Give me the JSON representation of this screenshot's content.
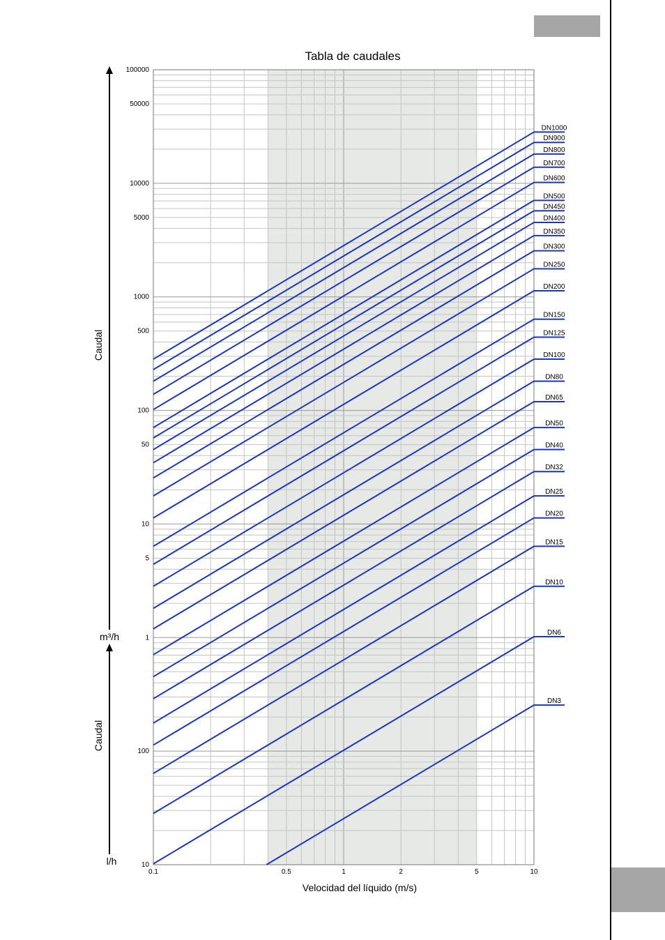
{
  "chart_data": {
    "type": "line",
    "title": "Tabla de caudales",
    "xlabel": "Velocidad del líquido (m/s)",
    "ylabel_upper": "Caudal",
    "ylabel_lower": "Caudal",
    "unit_upper": "m³/h",
    "unit_lower": "l/h",
    "x_scale": "log",
    "y_scale": "log",
    "xlim": [
      0.1,
      10
    ],
    "ylim_l_per_h": [
      10,
      100000000
    ],
    "x_tick_labels": [
      "0.1",
      "0.5",
      "1",
      "2",
      "5",
      "10"
    ],
    "y_ticks_upper_m3h": [
      "100000",
      "50000",
      "10000",
      "5000",
      "1000",
      "500",
      "100",
      "50",
      "10",
      "5",
      "1"
    ],
    "y_ticks_lower_lh": [
      "100",
      "10"
    ],
    "shaded_band_x": [
      0.4,
      5
    ],
    "grid": true,
    "line_color": "#1a35c8",
    "series": [
      {
        "name": "DN1000",
        "dn_mm": 1000
      },
      {
        "name": "DN900",
        "dn_mm": 900
      },
      {
        "name": "DN800",
        "dn_mm": 800
      },
      {
        "name": "DN700",
        "dn_mm": 700
      },
      {
        "name": "DN600",
        "dn_mm": 600
      },
      {
        "name": "DN500",
        "dn_mm": 500
      },
      {
        "name": "DN450",
        "dn_mm": 450
      },
      {
        "name": "DN400",
        "dn_mm": 400
      },
      {
        "name": "DN350",
        "dn_mm": 350
      },
      {
        "name": "DN300",
        "dn_mm": 300
      },
      {
        "name": "DN250",
        "dn_mm": 250
      },
      {
        "name": "DN200",
        "dn_mm": 200
      },
      {
        "name": "DN150",
        "dn_mm": 150
      },
      {
        "name": "DN125",
        "dn_mm": 125
      },
      {
        "name": "DN100",
        "dn_mm": 100
      },
      {
        "name": "DN80",
        "dn_mm": 80
      },
      {
        "name": "DN65",
        "dn_mm": 65
      },
      {
        "name": "DN50",
        "dn_mm": 50
      },
      {
        "name": "DN40",
        "dn_mm": 40
      },
      {
        "name": "DN32",
        "dn_mm": 32
      },
      {
        "name": "DN25",
        "dn_mm": 25
      },
      {
        "name": "DN20",
        "dn_mm": 20
      },
      {
        "name": "DN15",
        "dn_mm": 15
      },
      {
        "name": "DN10",
        "dn_mm": 10
      },
      {
        "name": "DN6",
        "dn_mm": 6
      },
      {
        "name": "DN3",
        "dn_mm": 3
      }
    ]
  }
}
